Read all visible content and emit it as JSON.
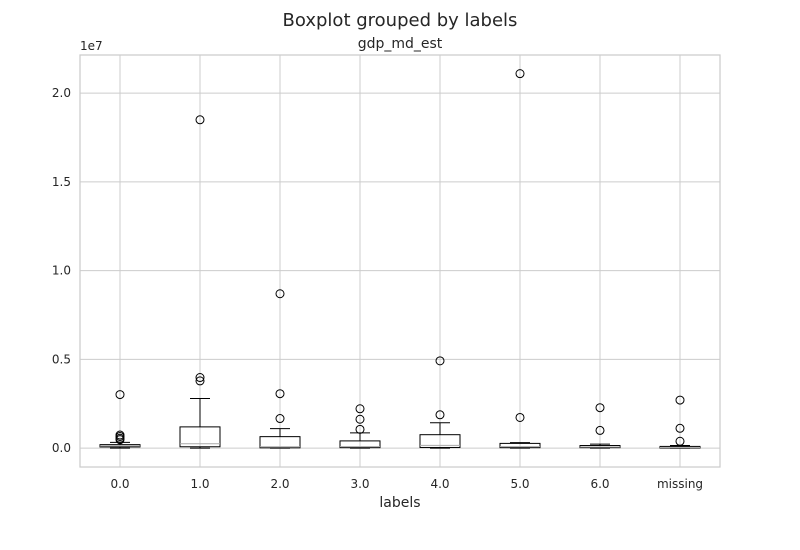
{
  "chart_data": {
    "type": "boxplot",
    "suptitle": "Boxplot grouped by labels",
    "title": "gdp_md_est",
    "xlabel": "labels",
    "ylabel": "",
    "y_offset_label": "1e7",
    "y_scale_factor": 10000000,
    "ylim": [
      -1060000,
      22150000
    ],
    "yticks": [
      0,
      5000000,
      10000000,
      15000000,
      20000000
    ],
    "ytick_labels": [
      "0.0",
      "0.5",
      "1.0",
      "1.5",
      "2.0"
    ],
    "grid": true,
    "categories": [
      "0.0",
      "1.0",
      "2.0",
      "3.0",
      "4.0",
      "5.0",
      "6.0",
      "missing"
    ],
    "boxes": [
      {
        "category": "0.0",
        "whisker_low": 0,
        "q1": 70000,
        "median": 120000,
        "q3": 200000,
        "whisker_high": 330000,
        "outliers": [
          3020000,
          740000,
          660000,
          560000,
          480000
        ]
      },
      {
        "category": "1.0",
        "whisker_low": 0,
        "q1": 80000,
        "median": 250000,
        "q3": 1200000,
        "whisker_high": 2800000,
        "outliers": [
          18500000,
          3980000,
          3790000
        ]
      },
      {
        "category": "2.0",
        "whisker_low": 0,
        "q1": 20000,
        "median": 80000,
        "q3": 650000,
        "whisker_high": 1100000,
        "outliers": [
          8700000,
          3070000,
          1670000
        ]
      },
      {
        "category": "3.0",
        "whisker_low": 0,
        "q1": 30000,
        "median": 90000,
        "q3": 410000,
        "whisker_high": 860000,
        "outliers": [
          2220000,
          1630000,
          1060000
        ]
      },
      {
        "category": "4.0",
        "whisker_low": 0,
        "q1": 40000,
        "median": 160000,
        "q3": 760000,
        "whisker_high": 1430000,
        "outliers": [
          4920000,
          1880000
        ]
      },
      {
        "category": "5.0",
        "whisker_low": 0,
        "q1": 30000,
        "median": 90000,
        "q3": 270000,
        "whisker_high": 310000,
        "outliers": [
          21100000,
          1730000
        ]
      },
      {
        "category": "6.0",
        "whisker_low": 0,
        "q1": 30000,
        "median": 70000,
        "q3": 150000,
        "whisker_high": 230000,
        "outliers": [
          2280000,
          1000000
        ]
      },
      {
        "category": "missing",
        "whisker_low": 0,
        "q1": 10000,
        "median": 40000,
        "q3": 100000,
        "whisker_high": 150000,
        "outliers": [
          2710000,
          1120000,
          390000
        ]
      }
    ]
  }
}
